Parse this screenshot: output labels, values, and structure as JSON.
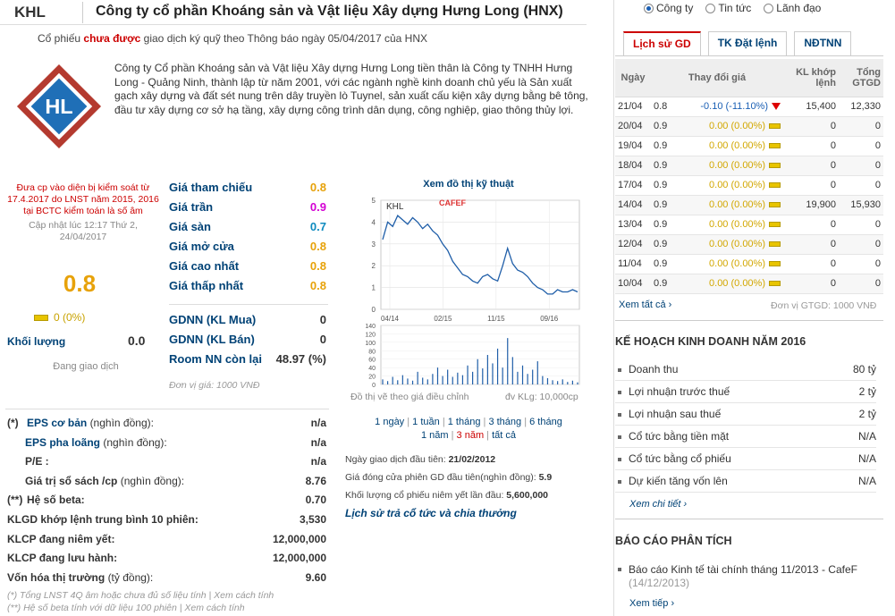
{
  "header": {
    "ticker": "KHL",
    "title": "Công ty cổ phần Khoáng sản và Vật liệu Xây dựng Hưng Long (HNX)",
    "notice_prefix": "Cổ phiếu",
    "notice_highlight": "chưa được",
    "notice_suffix": "giao dịch ký quỹ theo Thông báo ngày 05/04/2017 của HNX"
  },
  "logo": {
    "text": "HL"
  },
  "intro": "Công ty Cổ phần Khoáng sản và Vật liệu Xây dựng Hưng Long tiền thân là Công ty TNHH Hưng Long - Quảng Ninh, thành lập từ năm 2001, với các ngành nghề kinh doanh chủ yếu là Sản xuất gạch xây dựng và đất sét nung trên dây truyền lò Tuynel, sản xuất cấu kiện xây dựng bằng bê tông, đầu tư xây dựng cơ sở hạ tầng, xây dựng công trình dân dụng, công nghiệp, giao thông thủy lợi.",
  "quote": {
    "warning": "Đưa cp vào diện bị kiểm soát từ 17.4.2017 do LNST năm 2015, 2016 tại BCTC kiểm toán là số âm",
    "updated": "Cập nhật lúc 12:17 Thứ 2, 24/04/2017",
    "price": "0.8",
    "change": "0 (0%)",
    "volume_label": "Khối lượng",
    "volume_value": "0.0",
    "status": "Đang giao dịch"
  },
  "prices": [
    {
      "label": "Giá tham chiếu",
      "value": "0.8",
      "color": "#e7a20a"
    },
    {
      "label": "Giá trần",
      "value": "0.9",
      "color": "#d400d4"
    },
    {
      "label": "Giá sàn",
      "value": "0.7",
      "color": "#0e8bbf"
    },
    {
      "label": "Giá mở cửa",
      "value": "0.8",
      "color": "#e7a20a"
    },
    {
      "label": "Giá cao nhất",
      "value": "0.8",
      "color": "#e7a20a"
    },
    {
      "label": "Giá thấp nhất",
      "value": "0.8",
      "color": "#e7a20a"
    }
  ],
  "gdnn": [
    {
      "label": "GDNN (KL Mua)",
      "value": "0"
    },
    {
      "label": "GDNN (KL Bán)",
      "value": "0"
    },
    {
      "label": "Room NN còn lại",
      "value": "48.97 (%)"
    }
  ],
  "price_unit": "Đơn vị giá: 1000 VNĐ",
  "fundamentals": [
    {
      "prefix": "(*)",
      "label": "EPS cơ bản",
      "unit": "(nghìn đồng):",
      "value": "n/a",
      "blue": true
    },
    {
      "prefix": "",
      "label": "EPS pha loãng",
      "unit": "(nghìn đồng):",
      "value": "n/a",
      "blue": true
    },
    {
      "prefix": "",
      "label": "P/E :",
      "unit": "",
      "value": "n/a",
      "blue": false
    },
    {
      "prefix": "",
      "label": "Giá trị sổ sách /cp",
      "unit": "(nghìn đồng):",
      "value": "8.76",
      "blue": false
    },
    {
      "prefix": "(**)",
      "label": "Hệ số beta:",
      "unit": "",
      "value": "0.70",
      "blue": false
    },
    {
      "prefix": "",
      "label": "KLGD khớp lệnh trung bình 10 phiên:",
      "unit": "",
      "value": "3,530",
      "blue": false
    },
    {
      "prefix": "",
      "label": "KLCP đang niêm yết:",
      "unit": "",
      "value": "12,000,000",
      "blue": false
    },
    {
      "prefix": "",
      "label": "KLCP đang lưu hành:",
      "unit": "",
      "value": "12,000,000",
      "blue": false
    },
    {
      "prefix": "",
      "label": "Vốn hóa thị trường",
      "unit": "(tỷ đồng):",
      "value": "9.60",
      "blue": false
    }
  ],
  "notes": {
    "n1": "(*) Tổng LNST 4Q âm hoặc chưa đủ số liệu tính | Xem cách tính",
    "n2": "(**) Hệ số beta tính với dữ liệu 100 phiên | Xem cách tính"
  },
  "chart": {
    "title": "Xem đồ thị kỹ thuật",
    "watermark": "CAFEF",
    "ticker": "KHL",
    "note_left": "Đồ thị vẽ theo giá điều chỉnh",
    "note_right": "đv KLg: 10,000cp",
    "periods_line1": [
      "1 ngày",
      "1 tuần",
      "1 tháng",
      "3 tháng",
      "6 tháng"
    ],
    "periods_line2": [
      "1 năm",
      "3 năm",
      "tất cả"
    ]
  },
  "chart_data": {
    "type": "line",
    "title": "KHL",
    "x_ticks": [
      "04/14",
      "02/15",
      "11/15",
      "09/16"
    ],
    "y_ticks": [
      0,
      1,
      2,
      3,
      4,
      5
    ],
    "ylim": [
      0,
      5
    ],
    "series": [
      {
        "name": "Price",
        "values": [
          3.2,
          4.0,
          3.8,
          4.3,
          4.1,
          3.9,
          4.2,
          4.0,
          3.7,
          3.9,
          3.6,
          3.4,
          3.0,
          2.7,
          2.2,
          1.9,
          1.6,
          1.5,
          1.3,
          1.2,
          1.5,
          1.6,
          1.4,
          1.3,
          2.0,
          2.8,
          2.1,
          1.8,
          1.7,
          1.5,
          1.2,
          1.0,
          0.9,
          0.7,
          0.7,
          0.9,
          0.8,
          0.8,
          0.9,
          0.8
        ]
      }
    ],
    "volume_ticks": [
      0,
      20,
      40,
      60,
      80,
      100,
      120,
      140
    ],
    "volume_ylim": [
      0,
      140
    ],
    "volume": [
      12,
      8,
      18,
      10,
      22,
      14,
      9,
      30,
      16,
      12,
      25,
      40,
      20,
      35,
      18,
      28,
      22,
      45,
      30,
      60,
      38,
      70,
      50,
      85,
      40,
      110,
      65,
      30,
      45,
      25,
      35,
      55,
      20,
      15,
      10,
      8,
      12,
      6,
      9,
      5
    ]
  },
  "listing": {
    "first_day_label": "Ngày giao dịch đầu tiên:",
    "first_day_value": "21/02/2012",
    "first_price_label": "Giá đóng cửa phiên GD đầu tiên(nghìn đồng):",
    "first_price_value": "5.9",
    "first_vol_label": "Khối lượng cổ phiếu niêm yết lần đầu:",
    "first_vol_value": "5,600,000",
    "history_link": "Lịch sử trả cổ tức và chia thưởng"
  },
  "right": {
    "radios": [
      {
        "label": "Công ty",
        "checked": true
      },
      {
        "label": "Tin tức",
        "checked": false
      },
      {
        "label": "Lãnh đạo",
        "checked": false
      }
    ],
    "tabs": [
      "Lịch sử GD",
      "TK Đặt lệnh",
      "NĐTNN"
    ],
    "table_headers": [
      "Ngày",
      "Thay đổi giá",
      "KL khớp lệnh",
      "Tổng GTGD"
    ],
    "rows": [
      {
        "date": "21/04",
        "price": "0.8",
        "change": "-0.10 (-11.10%)",
        "down": true,
        "vol": "15,400",
        "value": "12,330"
      },
      {
        "date": "20/04",
        "price": "0.9",
        "change": "0.00 (0.00%)",
        "down": false,
        "vol": "0",
        "value": "0"
      },
      {
        "date": "19/04",
        "price": "0.9",
        "change": "0.00 (0.00%)",
        "down": false,
        "vol": "0",
        "value": "0"
      },
      {
        "date": "18/04",
        "price": "0.9",
        "change": "0.00 (0.00%)",
        "down": false,
        "vol": "0",
        "value": "0"
      },
      {
        "date": "17/04",
        "price": "0.9",
        "change": "0.00 (0.00%)",
        "down": false,
        "vol": "0",
        "value": "0"
      },
      {
        "date": "14/04",
        "price": "0.9",
        "change": "0.00 (0.00%)",
        "down": false,
        "vol": "19,900",
        "value": "15,930"
      },
      {
        "date": "13/04",
        "price": "0.9",
        "change": "0.00 (0.00%)",
        "down": false,
        "vol": "0",
        "value": "0"
      },
      {
        "date": "12/04",
        "price": "0.9",
        "change": "0.00 (0.00%)",
        "down": false,
        "vol": "0",
        "value": "0"
      },
      {
        "date": "11/04",
        "price": "0.9",
        "change": "0.00 (0.00%)",
        "down": false,
        "vol": "0",
        "value": "0"
      },
      {
        "date": "10/04",
        "price": "0.9",
        "change": "0.00 (0.00%)",
        "down": false,
        "vol": "0",
        "value": "0"
      }
    ],
    "see_all": "Xem tất cả ›",
    "unit": "Đơn vị GTGD: 1000 VNĐ",
    "plan_title": "KẾ HOẠCH KINH DOANH NĂM 2016",
    "plan": [
      {
        "label": "Doanh thu",
        "value": "80 tỷ"
      },
      {
        "label": "Lợi nhuận trước thuế",
        "value": "2 tỷ"
      },
      {
        "label": "Lợi nhuận sau thuế",
        "value": "2 tỷ"
      },
      {
        "label": "Cổ tức bằng tiền mặt",
        "value": "N/A"
      },
      {
        "label": "Cổ tức bằng cổ phiếu",
        "value": "N/A"
      },
      {
        "label": "Dự kiến tăng vốn lên",
        "value": "N/A"
      }
    ],
    "plan_more": "Xem chi tiết ›",
    "report_title": "BÁO CÁO PHÂN TÍCH",
    "report_text": "Báo cáo Kinh tế tài chính tháng 11/2013 - CafeF",
    "report_date": "(14/12/2013)",
    "report_more": "Xem tiếp ›"
  }
}
